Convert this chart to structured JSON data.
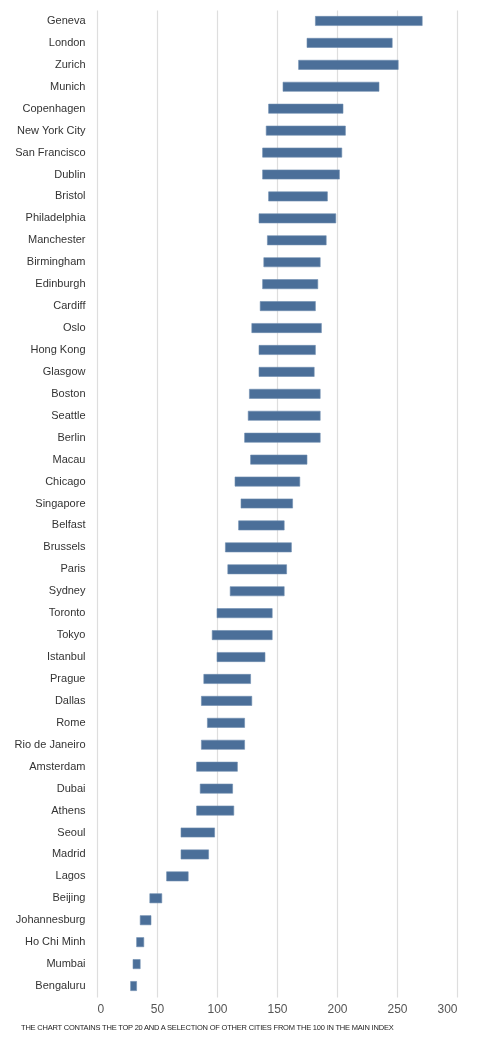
{
  "chart_data": {
    "type": "bar",
    "orientation": "horizontal",
    "categories": [
      "Geneva",
      "London",
      "Zurich",
      "Munich",
      "Copenhagen",
      "New York City",
      "San Francisco",
      "Dublin",
      "Bristol",
      "Philadelphia",
      "Manchester",
      "Birmingham",
      "Edinburgh",
      "Cardiff",
      "Oslo",
      "Hong Kong",
      "Glasgow",
      "Boston",
      "Seattle",
      "Berlin",
      "Macau",
      "Chicago",
      "Singapore",
      "Belfast",
      "Brussels",
      "Paris",
      "Sydney",
      "Toronto",
      "Tokyo",
      "Istanbul",
      "Prague",
      "Dallas",
      "Rome",
      "Rio de Janeiro",
      "Amsterdam",
      "Dubai",
      "Athens",
      "Seoul",
      "Madrid",
      "Lagos",
      "Beijing",
      "Johannesburg",
      "Ho Chi Minh",
      "Mumbai",
      "Bengaluru"
    ],
    "base": [
      182,
      175,
      168,
      155,
      143,
      141,
      138,
      138,
      143,
      135,
      142,
      139,
      138,
      136,
      129,
      135,
      135,
      127,
      126,
      123,
      128,
      115,
      120,
      118,
      107,
      109,
      111,
      100,
      96,
      100,
      89,
      87,
      92,
      87,
      83,
      86,
      83,
      70,
      70,
      58,
      44,
      36,
      33,
      30,
      28
    ],
    "values": [
      89,
      71,
      83,
      80,
      62,
      66,
      66,
      64,
      49,
      64,
      49,
      47,
      46,
      46,
      58,
      47,
      46,
      59,
      60,
      63,
      47,
      54,
      43,
      38,
      55,
      49,
      45,
      46,
      50,
      40,
      39,
      42,
      31,
      36,
      34,
      27,
      31,
      28,
      23,
      18,
      10,
      9,
      6,
      6,
      5
    ],
    "color": "#4b6f99",
    "xlim": [
      0,
      300
    ],
    "xticks": [
      0,
      50,
      100,
      150,
      200,
      250,
      300
    ],
    "grid": "x",
    "annotations": [
      "THE CHART CONTAINS THE TOP 20 AND A SELECTION OF OTHER CITIES FROM THE 100 IN THE MAIN INDEX"
    ]
  }
}
